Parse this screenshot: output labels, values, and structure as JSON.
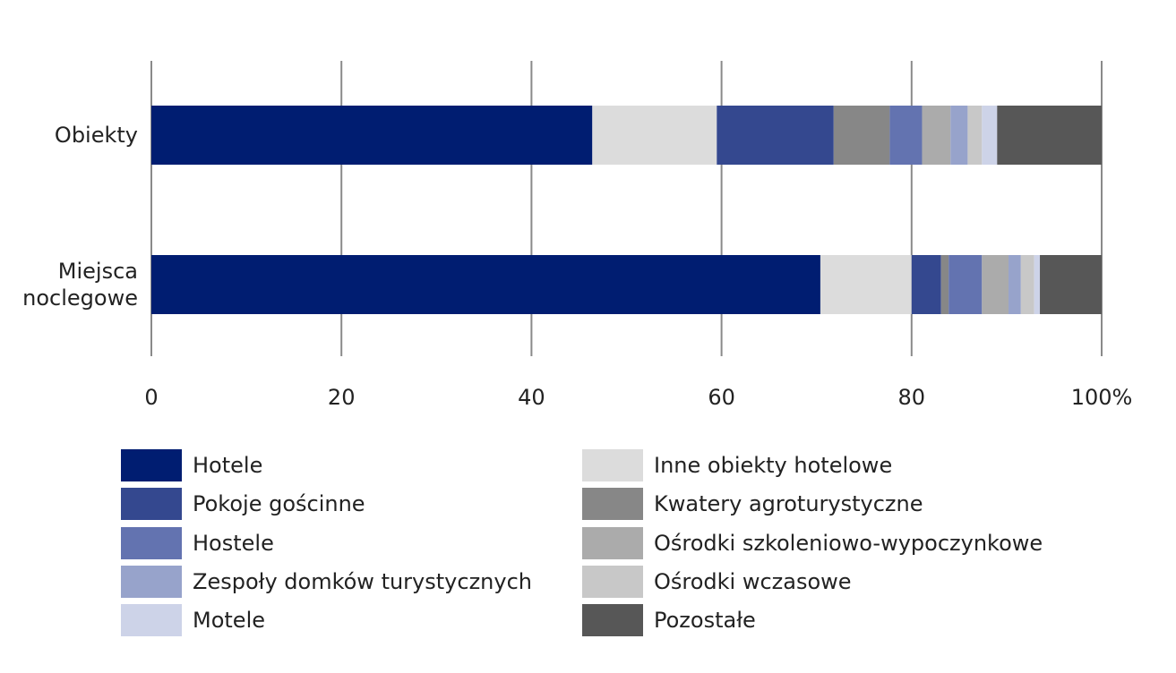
{
  "chart_data": {
    "type": "bar",
    "orientation": "horizontal",
    "stacked": true,
    "title": "",
    "xlabel": "",
    "ylabel": "",
    "xlim": [
      0,
      100
    ],
    "x_ticks": [
      "0",
      "20",
      "40",
      "60",
      "80",
      "100%"
    ],
    "x_tick_values": [
      0,
      20,
      40,
      60,
      80,
      100
    ],
    "grid": "vertical",
    "legend_position": "bottom",
    "categories": [
      [
        "Obiekty"
      ],
      [
        "Miejsca",
        "noclegowe"
      ]
    ],
    "series": [
      {
        "name": "Hotele",
        "color": "#001d71",
        "values": [
          46.4,
          70.4
        ]
      },
      {
        "name": "Inne obiekty hotelowe",
        "color": "#dcdcdc",
        "values": [
          13.1,
          9.6
        ]
      },
      {
        "name": "Pokoje gościnne",
        "color": "#34488f",
        "values": [
          12.3,
          3.1
        ]
      },
      {
        "name": "Kwatery agroturystyczne",
        "color": "#878787",
        "values": [
          5.9,
          0.8
        ]
      },
      {
        "name": "Hostele",
        "color": "#6373b0",
        "values": [
          3.4,
          3.5
        ]
      },
      {
        "name": "Ośrodki szkoleniowo-wypoczynkowe",
        "color": "#ababab",
        "values": [
          3.0,
          2.8
        ]
      },
      {
        "name": "Zespoły domków turystycznych",
        "color": "#97a3cb",
        "values": [
          1.8,
          1.3
        ]
      },
      {
        "name": "Ośrodki wczasowe",
        "color": "#c8c8c8",
        "values": [
          1.5,
          1.4
        ]
      },
      {
        "name": "Motele",
        "color": "#cdd3e8",
        "values": [
          1.6,
          0.6
        ]
      },
      {
        "name": "Pozostałe",
        "color": "#575757",
        "values": [
          11.0,
          6.5
        ]
      }
    ]
  },
  "legend": {
    "left": [
      "Hotele",
      "Pokoje gościnne",
      "Hostele",
      "Zespoły domków turystycznych",
      "Motele"
    ],
    "right": [
      "Inne obiekty hotelowe",
      "Kwatery agroturystyczne",
      "Ośrodki szkoleniowo-wypoczynkowe",
      "Ośrodki wczasowe",
      "Pozostałe"
    ]
  }
}
